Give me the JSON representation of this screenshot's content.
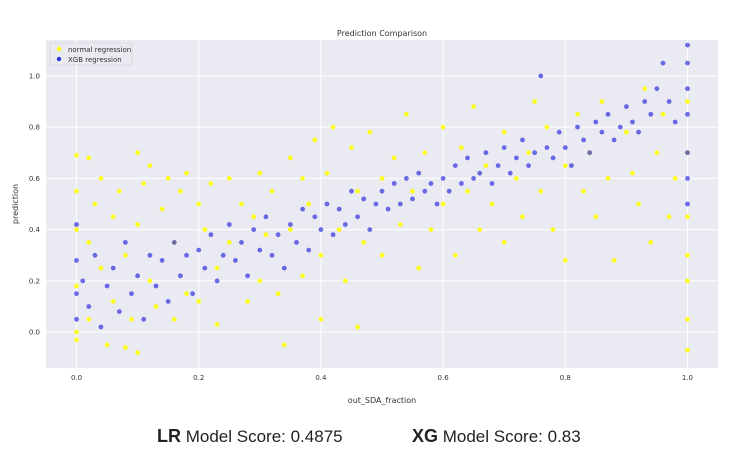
{
  "chart_data": {
    "type": "scatter",
    "title": "Prediction Comparison",
    "xlabel": "out_SDA_fraction",
    "ylabel": "prediction",
    "xlim": [
      -0.05,
      1.05
    ],
    "ylim": [
      -0.14,
      1.14
    ],
    "xticks": [
      "0.0",
      "0.2",
      "0.4",
      "0.6",
      "0.8",
      "1.0"
    ],
    "yticks": [
      "0.0",
      "0.2",
      "0.4",
      "0.6",
      "0.8",
      "1.0"
    ],
    "grid": true,
    "legend": "top-left",
    "series": [
      {
        "name": "normal regression",
        "color": "#ffff00",
        "points": [
          [
            0.0,
            0.69
          ],
          [
            0.0,
            0.55
          ],
          [
            0.0,
            0.4
          ],
          [
            0.0,
            0.18
          ],
          [
            0.0,
            0.0
          ],
          [
            0.0,
            -0.03
          ],
          [
            0.02,
            0.68
          ],
          [
            0.02,
            0.35
          ],
          [
            0.02,
            0.05
          ],
          [
            0.03,
            0.5
          ],
          [
            0.04,
            0.6
          ],
          [
            0.04,
            0.25
          ],
          [
            0.05,
            -0.05
          ],
          [
            0.06,
            0.45
          ],
          [
            0.06,
            0.12
          ],
          [
            0.07,
            0.55
          ],
          [
            0.08,
            0.3
          ],
          [
            0.08,
            -0.06
          ],
          [
            0.09,
            0.05
          ],
          [
            0.1,
            0.7
          ],
          [
            0.1,
            0.42
          ],
          [
            0.1,
            -0.08
          ],
          [
            0.11,
            0.58
          ],
          [
            0.12,
            0.2
          ],
          [
            0.12,
            0.65
          ],
          [
            0.13,
            0.1
          ],
          [
            0.14,
            0.48
          ],
          [
            0.15,
            0.6
          ],
          [
            0.16,
            0.35
          ],
          [
            0.16,
            0.05
          ],
          [
            0.17,
            0.55
          ],
          [
            0.18,
            0.62
          ],
          [
            0.18,
            0.15
          ],
          [
            0.2,
            0.5
          ],
          [
            0.2,
            0.12
          ],
          [
            0.21,
            0.4
          ],
          [
            0.22,
            0.58
          ],
          [
            0.23,
            0.25
          ],
          [
            0.23,
            0.03
          ],
          [
            0.25,
            0.6
          ],
          [
            0.25,
            0.35
          ],
          [
            0.27,
            0.5
          ],
          [
            0.28,
            0.12
          ],
          [
            0.29,
            0.45
          ],
          [
            0.3,
            0.62
          ],
          [
            0.3,
            0.2
          ],
          [
            0.31,
            0.38
          ],
          [
            0.32,
            0.55
          ],
          [
            0.33,
            0.15
          ],
          [
            0.34,
            -0.05
          ],
          [
            0.35,
            0.68
          ],
          [
            0.35,
            0.4
          ],
          [
            0.37,
            0.6
          ],
          [
            0.37,
            0.22
          ],
          [
            0.38,
            0.5
          ],
          [
            0.39,
            0.75
          ],
          [
            0.4,
            0.3
          ],
          [
            0.4,
            0.05
          ],
          [
            0.41,
            0.62
          ],
          [
            0.42,
            0.8
          ],
          [
            0.43,
            0.4
          ],
          [
            0.44,
            0.2
          ],
          [
            0.45,
            0.72
          ],
          [
            0.46,
            0.55
          ],
          [
            0.46,
            0.02
          ],
          [
            0.47,
            0.35
          ],
          [
            0.48,
            0.78
          ],
          [
            0.5,
            0.6
          ],
          [
            0.5,
            0.3
          ],
          [
            0.52,
            0.68
          ],
          [
            0.53,
            0.42
          ],
          [
            0.54,
            0.85
          ],
          [
            0.55,
            0.55
          ],
          [
            0.56,
            0.25
          ],
          [
            0.57,
            0.7
          ],
          [
            0.58,
            0.4
          ],
          [
            0.6,
            0.8
          ],
          [
            0.6,
            0.5
          ],
          [
            0.62,
            0.3
          ],
          [
            0.63,
            0.72
          ],
          [
            0.64,
            0.55
          ],
          [
            0.65,
            0.88
          ],
          [
            0.66,
            0.4
          ],
          [
            0.67,
            0.65
          ],
          [
            0.68,
            0.5
          ],
          [
            0.7,
            0.78
          ],
          [
            0.7,
            0.35
          ],
          [
            0.72,
            0.6
          ],
          [
            0.73,
            0.45
          ],
          [
            0.74,
            0.7
          ],
          [
            0.75,
            0.9
          ],
          [
            0.76,
            0.55
          ],
          [
            0.77,
            0.8
          ],
          [
            0.78,
            0.4
          ],
          [
            0.8,
            0.65
          ],
          [
            0.8,
            0.28
          ],
          [
            0.82,
            0.85
          ],
          [
            0.83,
            0.55
          ],
          [
            0.84,
            0.7
          ],
          [
            0.85,
            0.45
          ],
          [
            0.86,
            0.9
          ],
          [
            0.87,
            0.6
          ],
          [
            0.88,
            0.28
          ],
          [
            0.9,
            0.78
          ],
          [
            0.91,
            0.62
          ],
          [
            0.92,
            0.5
          ],
          [
            0.93,
            0.95
          ],
          [
            0.94,
            0.35
          ],
          [
            0.95,
            0.7
          ],
          [
            0.96,
            0.85
          ],
          [
            0.97,
            0.45
          ],
          [
            0.98,
            0.6
          ],
          [
            1.0,
            0.9
          ],
          [
            1.0,
            0.7
          ],
          [
            1.0,
            0.45
          ],
          [
            1.0,
            0.3
          ],
          [
            1.0,
            0.2
          ],
          [
            1.0,
            0.05
          ],
          [
            1.0,
            -0.07
          ]
        ]
      },
      {
        "name": "XGB regression",
        "color": "#3030e0",
        "points": [
          [
            0.0,
            0.42
          ],
          [
            0.0,
            0.28
          ],
          [
            0.0,
            0.15
          ],
          [
            0.0,
            0.05
          ],
          [
            0.01,
            0.2
          ],
          [
            0.02,
            0.1
          ],
          [
            0.03,
            0.3
          ],
          [
            0.04,
            0.02
          ],
          [
            0.05,
            0.18
          ],
          [
            0.06,
            0.25
          ],
          [
            0.07,
            0.08
          ],
          [
            0.08,
            0.35
          ],
          [
            0.09,
            0.15
          ],
          [
            0.1,
            0.22
          ],
          [
            0.11,
            0.05
          ],
          [
            0.12,
            0.3
          ],
          [
            0.13,
            0.18
          ],
          [
            0.14,
            0.28
          ],
          [
            0.15,
            0.12
          ],
          [
            0.16,
            0.35
          ],
          [
            0.17,
            0.22
          ],
          [
            0.18,
            0.3
          ],
          [
            0.19,
            0.15
          ],
          [
            0.2,
            0.32
          ],
          [
            0.21,
            0.25
          ],
          [
            0.22,
            0.38
          ],
          [
            0.23,
            0.2
          ],
          [
            0.24,
            0.3
          ],
          [
            0.25,
            0.42
          ],
          [
            0.26,
            0.28
          ],
          [
            0.27,
            0.35
          ],
          [
            0.28,
            0.22
          ],
          [
            0.29,
            0.4
          ],
          [
            0.3,
            0.32
          ],
          [
            0.31,
            0.45
          ],
          [
            0.32,
            0.3
          ],
          [
            0.33,
            0.38
          ],
          [
            0.34,
            0.25
          ],
          [
            0.35,
            0.42
          ],
          [
            0.36,
            0.35
          ],
          [
            0.37,
            0.48
          ],
          [
            0.38,
            0.32
          ],
          [
            0.39,
            0.45
          ],
          [
            0.4,
            0.4
          ],
          [
            0.41,
            0.5
          ],
          [
            0.42,
            0.38
          ],
          [
            0.43,
            0.48
          ],
          [
            0.44,
            0.42
          ],
          [
            0.45,
            0.55
          ],
          [
            0.46,
            0.45
          ],
          [
            0.47,
            0.52
          ],
          [
            0.48,
            0.4
          ],
          [
            0.49,
            0.5
          ],
          [
            0.5,
            0.55
          ],
          [
            0.51,
            0.48
          ],
          [
            0.52,
            0.58
          ],
          [
            0.53,
            0.5
          ],
          [
            0.54,
            0.6
          ],
          [
            0.55,
            0.52
          ],
          [
            0.56,
            0.62
          ],
          [
            0.57,
            0.55
          ],
          [
            0.58,
            0.58
          ],
          [
            0.59,
            0.5
          ],
          [
            0.6,
            0.6
          ],
          [
            0.61,
            0.55
          ],
          [
            0.62,
            0.65
          ],
          [
            0.63,
            0.58
          ],
          [
            0.64,
            0.68
          ],
          [
            0.65,
            0.6
          ],
          [
            0.66,
            0.62
          ],
          [
            0.67,
            0.7
          ],
          [
            0.68,
            0.58
          ],
          [
            0.69,
            0.65
          ],
          [
            0.7,
            0.72
          ],
          [
            0.71,
            0.62
          ],
          [
            0.72,
            0.68
          ],
          [
            0.73,
            0.75
          ],
          [
            0.74,
            0.65
          ],
          [
            0.75,
            0.7
          ],
          [
            0.76,
            1.0
          ],
          [
            0.77,
            0.72
          ],
          [
            0.78,
            0.68
          ],
          [
            0.79,
            0.78
          ],
          [
            0.8,
            0.72
          ],
          [
            0.81,
            0.65
          ],
          [
            0.82,
            0.8
          ],
          [
            0.83,
            0.75
          ],
          [
            0.84,
            0.7
          ],
          [
            0.85,
            0.82
          ],
          [
            0.86,
            0.78
          ],
          [
            0.87,
            0.85
          ],
          [
            0.88,
            0.75
          ],
          [
            0.89,
            0.8
          ],
          [
            0.9,
            0.88
          ],
          [
            0.91,
            0.82
          ],
          [
            0.92,
            0.78
          ],
          [
            0.93,
            0.9
          ],
          [
            0.94,
            0.85
          ],
          [
            0.95,
            0.95
          ],
          [
            0.96,
            1.05
          ],
          [
            0.97,
            0.9
          ],
          [
            0.98,
            0.82
          ],
          [
            1.0,
            1.12
          ],
          [
            1.0,
            1.05
          ],
          [
            1.0,
            0.95
          ],
          [
            1.0,
            0.85
          ],
          [
            1.0,
            0.7
          ],
          [
            1.0,
            0.6
          ],
          [
            1.0,
            0.5
          ]
        ]
      }
    ]
  },
  "scores": {
    "lr_prefix": "LR",
    "lr_text": " Model Score:  0.4875",
    "xg_prefix": "XG",
    "xg_text": " Model Score: 0.83"
  }
}
